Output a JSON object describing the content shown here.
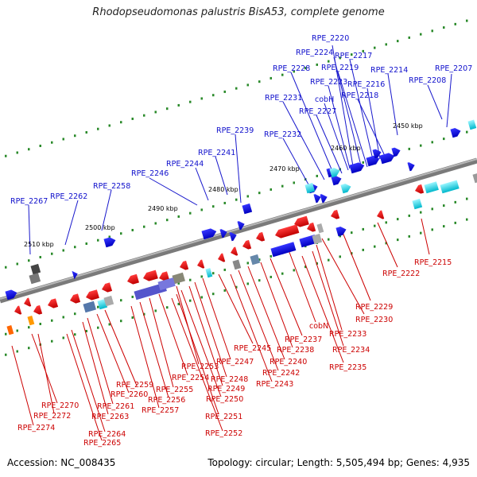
{
  "title": "Rhodopseudomonas palustris BisA53, complete genome",
  "footer": {
    "accession": "Accession: NC_008435",
    "topology": "Topology: circular; Length: 5,505,494 bp; Genes: 4,935"
  },
  "colors": {
    "forward_label": "#1010cc",
    "reverse_label": "#cc0000",
    "forward_gene": "#0a0ae8",
    "reverse_gene": "#ee0d0d",
    "rna_gene": "#00d8e6",
    "backbone": "#8a8a8a",
    "tick": "#2a8a2a"
  },
  "scale_labels": [
    "2450 kbp",
    "2460 kbp",
    "2470 kbp",
    "2480 kbp",
    "2490 kbp",
    "2500 kbp",
    "2510 kbp"
  ],
  "forward_labels": [
    "RPE_2220",
    "RPE_2224",
    "RPE_2217",
    "RPE_2228",
    "RPE_2219",
    "RPE_2214",
    "RPE_2207",
    "RPE_2223",
    "RPE_2216",
    "RPE_2208",
    "RPE_2231",
    "cobH",
    "RPE_2218",
    "RPE_2227",
    "RPE_2239",
    "RPE_2232",
    "RPE_2241",
    "RPE_2244",
    "RPE_2246",
    "RPE_2258",
    "RPE_2267",
    "RPE_2262"
  ],
  "reverse_labels": [
    "RPE_2215",
    "RPE_2222",
    "RPE_2229",
    "RPE_2230",
    "cobN",
    "RPE_2233",
    "RPE_2237",
    "RPE_2245",
    "RPE_2234",
    "RPE_2238",
    "RPE_2240",
    "RPE_2235",
    "RPE_2247",
    "RPE_2242",
    "RPE_2253",
    "RPE_2243",
    "RPE_2248",
    "RPE_2254",
    "RPE_2249",
    "RPE_2259",
    "RPE_2255",
    "RPE_2260",
    "RPE_2250",
    "RPE_2256",
    "RPE_2261",
    "RPE_2257",
    "RPE_2270",
    "RPE_2251",
    "RPE_2272",
    "RPE_2263",
    "RPE_2274",
    "RPE_2264",
    "RPE_2252",
    "RPE_2265"
  ]
}
